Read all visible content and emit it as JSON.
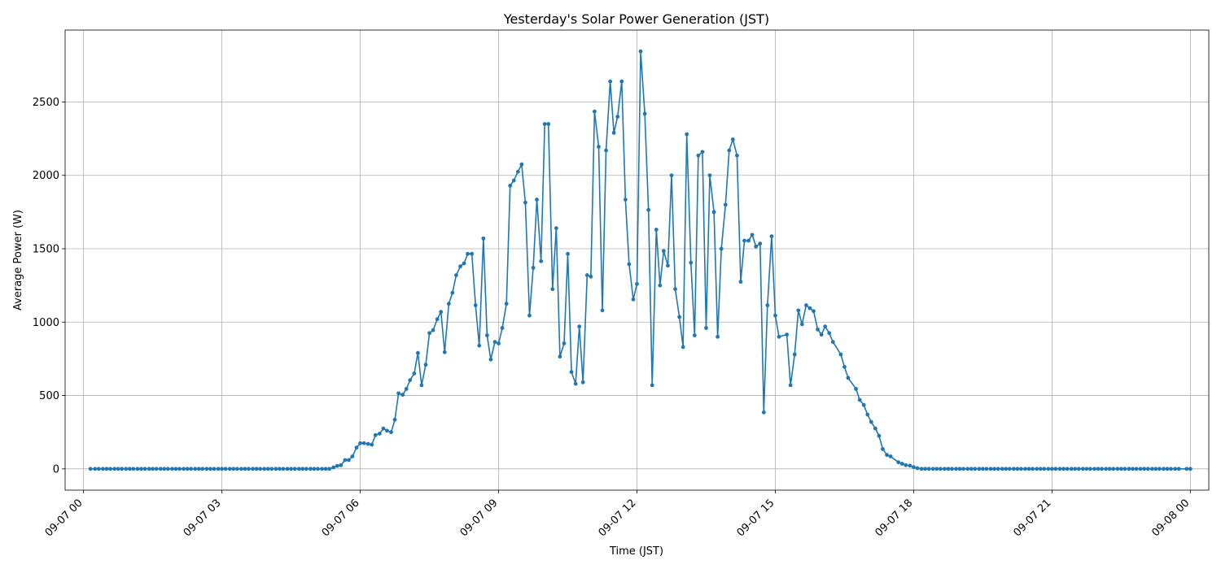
{
  "chart_data": {
    "type": "line",
    "title": "Yesterday's Solar Power Generation (JST)",
    "xlabel": "Time (JST)",
    "ylabel": "Average Power (W)",
    "grid": true,
    "line_color": "#1f77b4",
    "xlim_hours": [
      -0.4,
      24.4
    ],
    "ylim": [
      -145,
      2990
    ],
    "x_ticks": [
      {
        "hour": 0,
        "label": "09-07 00"
      },
      {
        "hour": 3,
        "label": "09-07 03"
      },
      {
        "hour": 6,
        "label": "09-07 06"
      },
      {
        "hour": 9,
        "label": "09-07 09"
      },
      {
        "hour": 12,
        "label": "09-07 12"
      },
      {
        "hour": 15,
        "label": "09-07 15"
      },
      {
        "hour": 18,
        "label": "09-07 18"
      },
      {
        "hour": 21,
        "label": "09-07 21"
      },
      {
        "hour": 24,
        "label": "09-08 00"
      }
    ],
    "y_ticks": [
      {
        "value": 0,
        "label": "0"
      },
      {
        "value": 500,
        "label": "500"
      },
      {
        "value": 1000,
        "label": "1000"
      },
      {
        "value": 1500,
        "label": "1500"
      },
      {
        "value": 2000,
        "label": "2000"
      },
      {
        "value": 2500,
        "label": "2500"
      }
    ],
    "series": [
      {
        "name": "Average Power (W)",
        "points": [
          [
            0.15,
            0
          ],
          [
            0.25,
            0
          ],
          [
            0.33,
            0
          ],
          [
            0.42,
            0
          ],
          [
            0.5,
            0
          ],
          [
            0.58,
            0
          ],
          [
            0.67,
            0
          ],
          [
            0.75,
            0
          ],
          [
            0.83,
            0
          ],
          [
            0.92,
            0
          ],
          [
            1.0,
            0
          ],
          [
            1.08,
            0
          ],
          [
            1.17,
            0
          ],
          [
            1.25,
            0
          ],
          [
            1.33,
            0
          ],
          [
            1.42,
            0
          ],
          [
            1.5,
            0
          ],
          [
            1.58,
            0
          ],
          [
            1.67,
            0
          ],
          [
            1.75,
            0
          ],
          [
            1.83,
            0
          ],
          [
            1.92,
            0
          ],
          [
            2.0,
            0
          ],
          [
            2.08,
            0
          ],
          [
            2.17,
            0
          ],
          [
            2.25,
            0
          ],
          [
            2.33,
            0
          ],
          [
            2.42,
            0
          ],
          [
            2.5,
            0
          ],
          [
            2.58,
            0
          ],
          [
            2.67,
            0
          ],
          [
            2.75,
            0
          ],
          [
            2.83,
            0
          ],
          [
            2.92,
            0
          ],
          [
            3.0,
            0
          ],
          [
            3.08,
            0
          ],
          [
            3.17,
            0
          ],
          [
            3.25,
            0
          ],
          [
            3.33,
            0
          ],
          [
            3.42,
            0
          ],
          [
            3.5,
            0
          ],
          [
            3.58,
            0
          ],
          [
            3.67,
            0
          ],
          [
            3.75,
            0
          ],
          [
            3.83,
            0
          ],
          [
            3.92,
            0
          ],
          [
            4.0,
            0
          ],
          [
            4.08,
            0
          ],
          [
            4.17,
            0
          ],
          [
            4.25,
            0
          ],
          [
            4.33,
            0
          ],
          [
            4.42,
            0
          ],
          [
            4.5,
            0
          ],
          [
            4.58,
            0
          ],
          [
            4.67,
            0
          ],
          [
            4.75,
            0
          ],
          [
            4.83,
            0
          ],
          [
            4.92,
            0
          ],
          [
            5.0,
            0
          ],
          [
            5.08,
            0
          ],
          [
            5.17,
            0
          ],
          [
            5.25,
            0
          ],
          [
            5.33,
            0
          ],
          [
            5.42,
            10
          ],
          [
            5.5,
            20
          ],
          [
            5.58,
            25
          ],
          [
            5.67,
            60
          ],
          [
            5.75,
            60
          ],
          [
            5.83,
            85
          ],
          [
            5.92,
            145
          ],
          [
            6.0,
            175
          ],
          [
            6.08,
            175
          ],
          [
            6.17,
            170
          ],
          [
            6.25,
            165
          ],
          [
            6.33,
            230
          ],
          [
            6.42,
            240
          ],
          [
            6.5,
            275
          ],
          [
            6.58,
            260
          ],
          [
            6.67,
            250
          ],
          [
            6.75,
            335
          ],
          [
            6.83,
            515
          ],
          [
            6.92,
            505
          ],
          [
            7.0,
            545
          ],
          [
            7.08,
            605
          ],
          [
            7.17,
            650
          ],
          [
            7.25,
            790
          ],
          [
            7.33,
            570
          ],
          [
            7.42,
            710
          ],
          [
            7.5,
            925
          ],
          [
            7.58,
            945
          ],
          [
            7.67,
            1020
          ],
          [
            7.75,
            1070
          ],
          [
            7.83,
            795
          ],
          [
            7.92,
            1125
          ],
          [
            8.0,
            1200
          ],
          [
            8.08,
            1320
          ],
          [
            8.17,
            1380
          ],
          [
            8.25,
            1400
          ],
          [
            8.33,
            1465
          ],
          [
            8.42,
            1465
          ],
          [
            8.5,
            1115
          ],
          [
            8.58,
            840
          ],
          [
            8.67,
            1570
          ],
          [
            8.75,
            910
          ],
          [
            8.83,
            745
          ],
          [
            8.92,
            865
          ],
          [
            9.0,
            855
          ],
          [
            9.08,
            960
          ],
          [
            9.17,
            1125
          ],
          [
            9.25,
            1930
          ],
          [
            9.33,
            1965
          ],
          [
            9.42,
            2025
          ],
          [
            9.5,
            2075
          ],
          [
            9.58,
            1815
          ],
          [
            9.67,
            1045
          ],
          [
            9.75,
            1370
          ],
          [
            9.83,
            1835
          ],
          [
            9.92,
            1415
          ],
          [
            10.0,
            2350
          ],
          [
            10.08,
            2350
          ],
          [
            10.17,
            1225
          ],
          [
            10.25,
            1640
          ],
          [
            10.33,
            765
          ],
          [
            10.42,
            855
          ],
          [
            10.5,
            1465
          ],
          [
            10.58,
            660
          ],
          [
            10.67,
            580
          ],
          [
            10.75,
            970
          ],
          [
            10.83,
            590
          ],
          [
            10.92,
            1320
          ],
          [
            11.0,
            1310
          ],
          [
            11.08,
            2435
          ],
          [
            11.17,
            2195
          ],
          [
            11.25,
            1080
          ],
          [
            11.33,
            2170
          ],
          [
            11.42,
            2640
          ],
          [
            11.5,
            2290
          ],
          [
            11.58,
            2400
          ],
          [
            11.67,
            2640
          ],
          [
            11.75,
            1835
          ],
          [
            11.83,
            1395
          ],
          [
            11.92,
            1155
          ],
          [
            12.0,
            1260
          ],
          [
            12.08,
            2845
          ],
          [
            12.17,
            2420
          ],
          [
            12.25,
            1765
          ],
          [
            12.33,
            570
          ],
          [
            12.42,
            1630
          ],
          [
            12.5,
            1250
          ],
          [
            12.58,
            1485
          ],
          [
            12.67,
            1385
          ],
          [
            12.75,
            2000
          ],
          [
            12.83,
            1225
          ],
          [
            12.92,
            1035
          ],
          [
            13.0,
            830
          ],
          [
            13.08,
            2280
          ],
          [
            13.17,
            1405
          ],
          [
            13.25,
            910
          ],
          [
            13.33,
            2135
          ],
          [
            13.42,
            2160
          ],
          [
            13.5,
            960
          ],
          [
            13.58,
            2000
          ],
          [
            13.67,
            1750
          ],
          [
            13.75,
            900
          ],
          [
            13.83,
            1500
          ],
          [
            13.92,
            1800
          ],
          [
            14.0,
            2170
          ],
          [
            14.08,
            2245
          ],
          [
            14.17,
            2135
          ],
          [
            14.25,
            1275
          ],
          [
            14.33,
            1555
          ],
          [
            14.42,
            1555
          ],
          [
            14.5,
            1595
          ],
          [
            14.58,
            1515
          ],
          [
            14.67,
            1535
          ],
          [
            14.75,
            385
          ],
          [
            14.83,
            1115
          ],
          [
            14.92,
            1585
          ],
          [
            15.0,
            1045
          ],
          [
            15.08,
            900
          ],
          [
            15.25,
            915
          ],
          [
            15.33,
            570
          ],
          [
            15.42,
            780
          ],
          [
            15.5,
            1080
          ],
          [
            15.58,
            985
          ],
          [
            15.67,
            1115
          ],
          [
            15.75,
            1095
          ],
          [
            15.83,
            1075
          ],
          [
            15.92,
            950
          ],
          [
            16.0,
            915
          ],
          [
            16.08,
            970
          ],
          [
            16.17,
            925
          ],
          [
            16.25,
            865
          ],
          [
            16.42,
            780
          ],
          [
            16.5,
            695
          ],
          [
            16.58,
            620
          ],
          [
            16.75,
            545
          ],
          [
            16.83,
            470
          ],
          [
            16.92,
            435
          ],
          [
            17.0,
            370
          ],
          [
            17.08,
            320
          ],
          [
            17.17,
            275
          ],
          [
            17.25,
            225
          ],
          [
            17.33,
            135
          ],
          [
            17.42,
            95
          ],
          [
            17.5,
            85
          ],
          [
            17.67,
            45
          ],
          [
            17.75,
            35
          ],
          [
            17.83,
            25
          ],
          [
            17.92,
            22
          ],
          [
            18.0,
            12
          ],
          [
            18.08,
            5
          ],
          [
            18.17,
            0
          ],
          [
            18.25,
            0
          ],
          [
            18.33,
            0
          ],
          [
            18.42,
            0
          ],
          [
            18.5,
            0
          ],
          [
            18.58,
            0
          ],
          [
            18.67,
            0
          ],
          [
            18.75,
            0
          ],
          [
            18.83,
            0
          ],
          [
            18.92,
            0
          ],
          [
            19.0,
            0
          ],
          [
            19.08,
            0
          ],
          [
            19.17,
            0
          ],
          [
            19.25,
            0
          ],
          [
            19.33,
            0
          ],
          [
            19.42,
            0
          ],
          [
            19.5,
            0
          ],
          [
            19.58,
            0
          ],
          [
            19.67,
            0
          ],
          [
            19.75,
            0
          ],
          [
            19.83,
            0
          ],
          [
            19.92,
            0
          ],
          [
            20.0,
            0
          ],
          [
            20.08,
            0
          ],
          [
            20.17,
            0
          ],
          [
            20.25,
            0
          ],
          [
            20.33,
            0
          ],
          [
            20.42,
            0
          ],
          [
            20.5,
            0
          ],
          [
            20.58,
            0
          ],
          [
            20.67,
            0
          ],
          [
            20.75,
            0
          ],
          [
            20.83,
            0
          ],
          [
            20.92,
            0
          ],
          [
            21.0,
            0
          ],
          [
            21.08,
            0
          ],
          [
            21.17,
            0
          ],
          [
            21.25,
            0
          ],
          [
            21.33,
            0
          ],
          [
            21.42,
            0
          ],
          [
            21.5,
            0
          ],
          [
            21.58,
            0
          ],
          [
            21.67,
            0
          ],
          [
            21.75,
            0
          ],
          [
            21.83,
            0
          ],
          [
            21.92,
            0
          ],
          [
            22.0,
            0
          ],
          [
            22.08,
            0
          ],
          [
            22.17,
            0
          ],
          [
            22.25,
            0
          ],
          [
            22.33,
            0
          ],
          [
            22.42,
            0
          ],
          [
            22.5,
            0
          ],
          [
            22.58,
            0
          ],
          [
            22.67,
            0
          ],
          [
            22.75,
            0
          ],
          [
            22.83,
            0
          ],
          [
            22.92,
            0
          ],
          [
            23.0,
            0
          ],
          [
            23.08,
            0
          ],
          [
            23.17,
            0
          ],
          [
            23.25,
            0
          ],
          [
            23.33,
            0
          ],
          [
            23.42,
            0
          ],
          [
            23.5,
            0
          ],
          [
            23.58,
            0
          ],
          [
            23.67,
            0
          ],
          [
            23.75,
            0
          ],
          [
            23.92,
            0
          ],
          [
            24.0,
            0
          ]
        ]
      }
    ]
  }
}
